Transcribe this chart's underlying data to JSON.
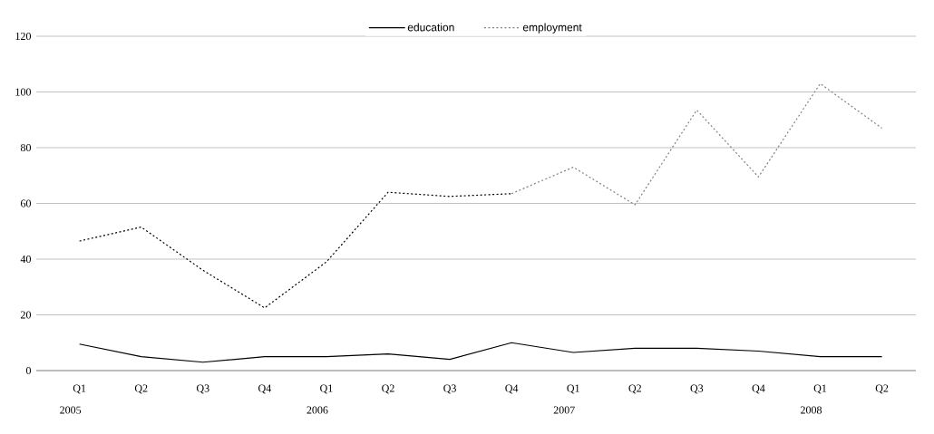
{
  "chart_data": {
    "type": "line",
    "categories": [
      "Q1",
      "Q2",
      "Q3",
      "Q4",
      "Q1",
      "Q2",
      "Q3",
      "Q4",
      "Q1",
      "Q2",
      "Q3",
      "Q4",
      "Q1",
      "Q2"
    ],
    "series": [
      {
        "name": "education",
        "color": "#000000",
        "line_style": "solid",
        "values": [
          9.5,
          5,
          3,
          5,
          5,
          6,
          4,
          10,
          6.5,
          8,
          8,
          7,
          5,
          5
        ]
      },
      {
        "color": "#000000",
        "line_style": "dotted",
        "values": [
          46.5,
          51.5,
          36,
          22.5,
          39,
          64,
          62.5,
          63.5,
          null,
          null,
          null,
          null,
          null,
          null
        ]
      },
      {
        "name": "employment",
        "color": "#808080",
        "line_style": "dotted",
        "values": [
          null,
          null,
          null,
          null,
          null,
          null,
          null,
          63.5,
          73,
          59.5,
          93.5,
          69.5,
          103,
          87
        ]
      }
    ],
    "ylim": [
      0,
      120
    ],
    "yticks": [
      0,
      20,
      40,
      60,
      80,
      100,
      120
    ],
    "grid": "y",
    "legend": "top",
    "annotations": [
      "2005",
      "2006",
      "2007",
      "2008"
    ]
  }
}
